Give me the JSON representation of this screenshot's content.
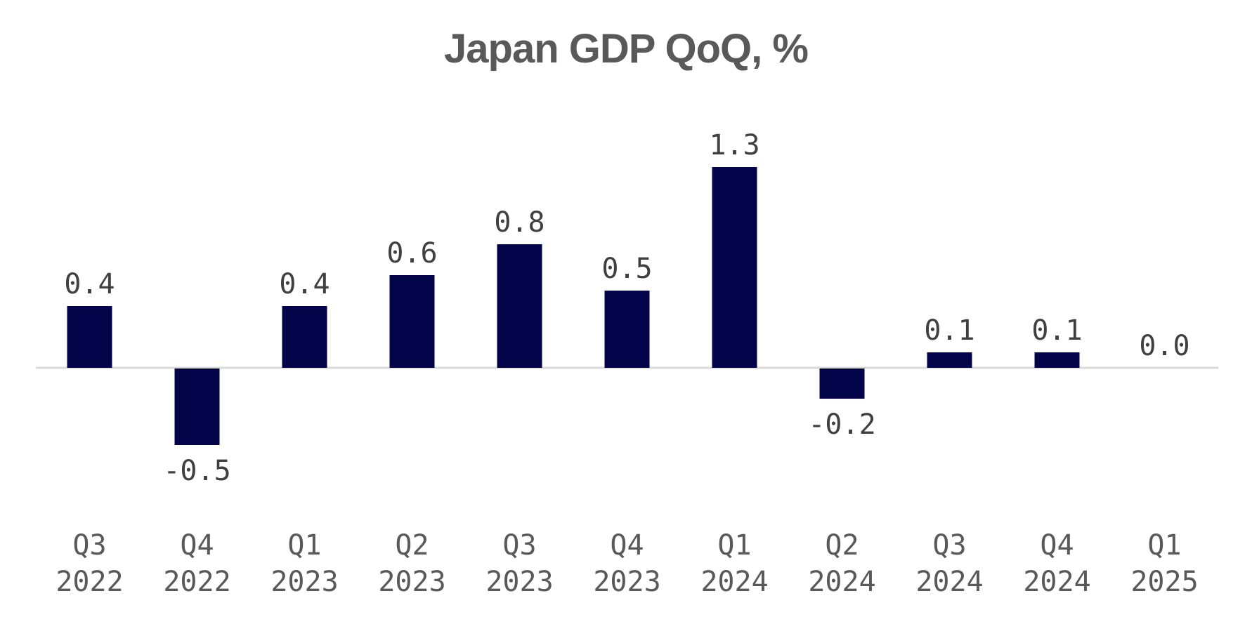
{
  "chart_data": {
    "type": "bar",
    "title": "Japan GDP QoQ, %",
    "xlabel": "",
    "ylabel": "",
    "categories": [
      [
        "Q3",
        "2022"
      ],
      [
        "Q4",
        "2022"
      ],
      [
        "Q1",
        "2023"
      ],
      [
        "Q2",
        "2023"
      ],
      [
        "Q3",
        "2023"
      ],
      [
        "Q4",
        "2023"
      ],
      [
        "Q1",
        "2024"
      ],
      [
        "Q2",
        "2024"
      ],
      [
        "Q3",
        "2024"
      ],
      [
        "Q4",
        "2024"
      ],
      [
        "Q1",
        "2025"
      ]
    ],
    "values": [
      0.4,
      -0.5,
      0.4,
      0.6,
      0.8,
      0.5,
      1.3,
      -0.2,
      0.1,
      0.1,
      0.0
    ],
    "data_labels": [
      "0.4",
      "-0.5",
      "0.4",
      "0.6",
      "0.8",
      "0.5",
      "1.3",
      "-0.2",
      "0.1",
      "0.1",
      "0.0"
    ],
    "ylim": [
      -0.8,
      1.5
    ],
    "grid": false,
    "legend": "none",
    "colors": {
      "bar": "#03034a",
      "axis": "#d9d9d9",
      "title": "#595959",
      "label": "#404040",
      "tick": "#595959"
    }
  }
}
